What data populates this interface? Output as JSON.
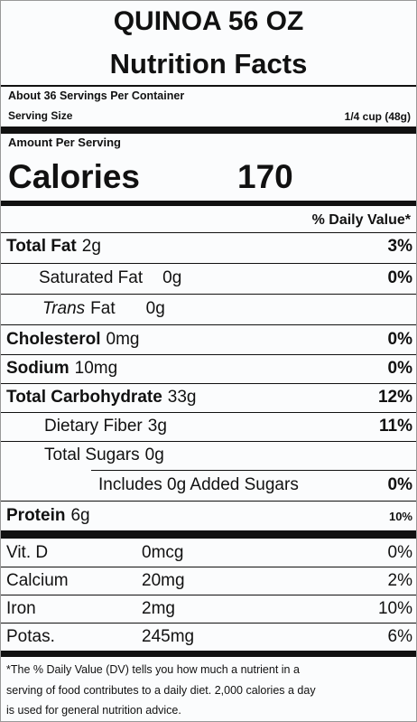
{
  "header": {
    "product": "QUINOA 56 OZ",
    "title": "Nutrition Facts"
  },
  "servings": {
    "per_container": "About 36 Servings Per Container",
    "size_label": "Serving Size",
    "size": "1/4 cup (48g)"
  },
  "calories": {
    "heading": "Amount Per Serving",
    "label": "Calories",
    "value": "170"
  },
  "dv_heading": "% Daily Value*",
  "nutrients": [
    {
      "name": "Total Fat",
      "amount": "2g",
      "dv": "3%"
    },
    {
      "name": "Saturated Fat",
      "amount": "0g",
      "dv": "0%"
    },
    {
      "name_italic": "Trans",
      "name": "Fat",
      "amount": "0g"
    },
    {
      "name": "Cholesterol",
      "amount": "0mg",
      "dv": "0%"
    },
    {
      "name": "Sodium",
      "amount": "10mg",
      "dv": "0%"
    },
    {
      "name": "Total Carbohydrate",
      "amount": "33g",
      "dv": "12%"
    },
    {
      "name": "Dietary Fiber",
      "amount": "3g",
      "dv": "11%"
    },
    {
      "name": "Total Sugars",
      "amount": "0g"
    },
    {
      "name": "Includes 0g Added Sugars",
      "dv": "0%"
    },
    {
      "name": "Protein",
      "amount": "6g",
      "dv": "10%"
    }
  ],
  "vitamins": [
    {
      "name": "Vit. D",
      "amount": "0mcg",
      "dv": "0%"
    },
    {
      "name": "Calcium",
      "amount": "20mg",
      "dv": "2%"
    },
    {
      "name": "Iron",
      "amount": "2mg",
      "dv": "10%"
    },
    {
      "name": "Potas.",
      "amount": "245mg",
      "dv": "6%"
    }
  ],
  "footnote": [
    "*The % Daily Value (DV) tells you how much a nutrient in a",
    "serving of food contributes to a daily diet. 2,000 calories a day",
    "is used for general nutrition advice."
  ]
}
